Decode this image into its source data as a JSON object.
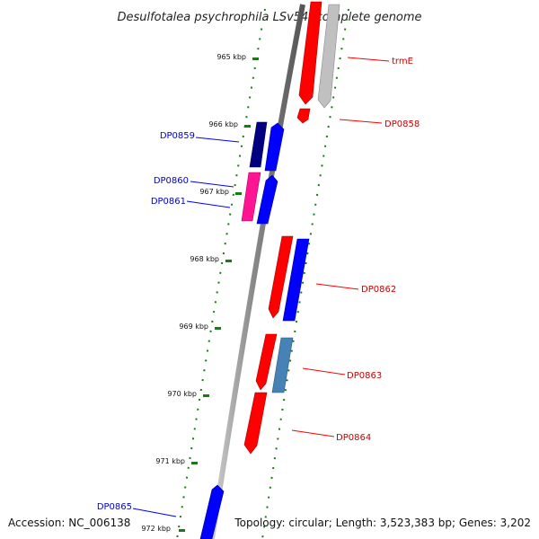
{
  "title": "Desulfotalea psychrophila LSv54, complete genome",
  "footer": {
    "accession": "Accession: NC_006138",
    "summary": "Topology: circular; Length: 3,523,383 bp; Genes: 3,202"
  },
  "ticks": [
    "965 kbp",
    "966 kbp",
    "967 kbp",
    "968 kbp",
    "969 kbp",
    "970 kbp",
    "971 kbp",
    "972 kbp"
  ],
  "labels": {
    "trmE": "trmE",
    "DP0858": "DP0858",
    "DP0859": "DP0859",
    "DP0860": "DP0860",
    "DP0861": "DP0861",
    "DP0862": "DP0862",
    "DP0863": "DP0863",
    "DP0864": "DP0864",
    "DP0865": "DP0865"
  },
  "colors": {
    "forward": "#ff0000",
    "reverse": "#0000ff",
    "navy": "#000080",
    "pink": "#ff1493",
    "steel": "#4682b4",
    "gray": "#c0c0c0",
    "dots": "#1a7a1a",
    "backbone": "#808080"
  }
}
